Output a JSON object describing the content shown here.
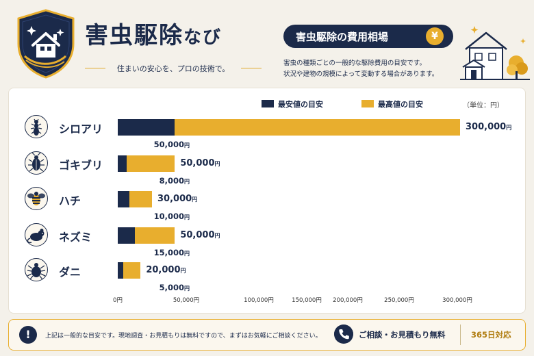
{
  "header": {
    "brand_main": "害虫駆除",
    "brand_suffix": "なび",
    "tagline": "住まいの安心を、プロの技術で。",
    "pill_title": "害虫駆除の費用相場",
    "yen_symbol": "¥",
    "description": [
      "害虫の種類ごとの一般的な駆除費用の目安です。",
      "状況や建物の規模によって変動する場合があります。"
    ]
  },
  "colors": {
    "navy": "#1b2a4a",
    "gold": "#e8ae2e"
  },
  "chart_data": {
    "type": "bar",
    "orientation": "horizontal",
    "unit_note": "（単位：円）",
    "currency_suffix": "円",
    "categories": [
      "シロアリ",
      "ゴキブリ",
      "ハチ",
      "ネズミ",
      "ダニ"
    ],
    "category_icons": [
      "termite-icon",
      "cockroach-icon",
      "bee-icon",
      "rat-icon",
      "tick-icon"
    ],
    "series": [
      {
        "name": "最安値の目安",
        "color": "#1b2a4a",
        "values": [
          50000,
          8000,
          10000,
          15000,
          5000
        ]
      },
      {
        "name": "最高値の目安",
        "color": "#e8ae2e",
        "values": [
          300000,
          50000,
          30000,
          50000,
          20000
        ]
      }
    ],
    "low_labels": [
      "50,000",
      "8,000",
      "10,000",
      "15,000",
      "5,000"
    ],
    "high_labels": [
      "300,000",
      "50,000",
      "30,000",
      "50,000",
      "20,000"
    ],
    "x_ticks": [
      {
        "value": 0,
        "label": "0円"
      },
      {
        "value": 50000,
        "label": "50,000円"
      },
      {
        "value": 100000,
        "label": "100,000円"
      },
      {
        "value": 150000,
        "label": "150,000円"
      },
      {
        "value": 200000,
        "label": "200,000円"
      },
      {
        "value": 250000,
        "label": "250,000円"
      },
      {
        "value": 300000,
        "label": "300,000円"
      }
    ],
    "legend_position": "top-right"
  },
  "footer": {
    "warning_symbol": "!",
    "note": "上記は一般的な目安です。現地調査・お見積もりは無料ですので、まずはお気軽にご相談ください。",
    "contact": "ご相談・お見積もり無料",
    "days": "365日対応"
  }
}
